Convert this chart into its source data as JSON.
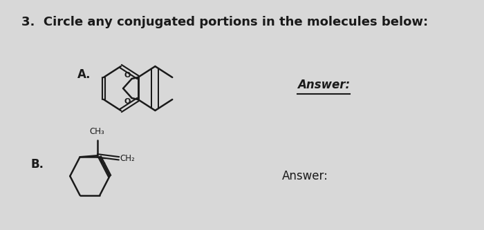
{
  "title": "3.  Circle any conjugated portions in the molecules below:",
  "title_fontsize": 13,
  "title_fontweight": "bold",
  "bg_color": "#d8d8d8",
  "label_A": "A.",
  "label_B": "B.",
  "answer_italic": "Answer:",
  "answer_plain": "Answer:",
  "line_color": "#1a1a1a",
  "line_width": 1.8
}
